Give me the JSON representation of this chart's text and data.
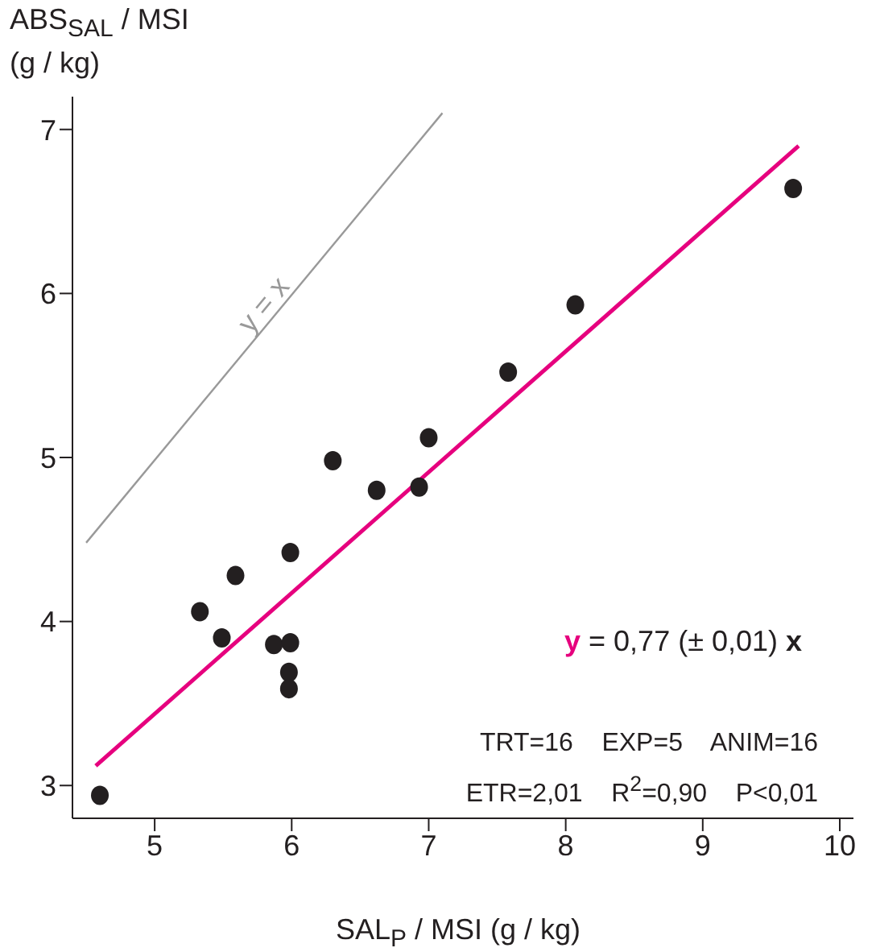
{
  "chart_data": {
    "type": "scatter",
    "xlabel": "SAL$_{P}$ / MSI (g / kg)",
    "ylabel": "ABS$_{SAL}$ / MSI\n(g / kg)",
    "xlim": [
      4.4,
      10.1
    ],
    "xticks": [
      5,
      6,
      7,
      8,
      9,
      10
    ],
    "ylim": [
      2.8,
      7.2
    ],
    "yticks": [
      3,
      4,
      5,
      6,
      7
    ],
    "series": [
      {
        "marker": "circle",
        "color": "#231f20",
        "x": [
          4.6,
          5.33,
          5.49,
          5.59,
          5.87,
          5.99,
          5.98,
          5.98,
          5.99,
          6.3,
          6.62,
          6.93,
          7.0,
          7.58,
          8.07,
          9.66
        ],
        "values": [
          2.94,
          4.06,
          3.9,
          4.28,
          3.86,
          3.87,
          3.69,
          3.59,
          4.42,
          4.98,
          4.8,
          4.82,
          5.12,
          5.52,
          5.93,
          6.64
        ]
      },
      {
        "type": "line",
        "marker": "none",
        "color": "#e6007e",
        "x": [
          4.57,
          9.7
        ],
        "values": [
          3.12,
          6.9
        ]
      },
      {
        "type": "line",
        "marker": "none",
        "name": "y = x",
        "color": "#999999",
        "x": [
          4.5,
          7.1
        ],
        "values": [
          4.48,
          7.1
        ]
      }
    ],
    "annotations": [
      "y = 0,77 (± 0,01) x",
      "TRT=16    EXP=5    ANIM=16",
      "ETR=2,01    R$^{2}$=0,90    P<0,01"
    ]
  }
}
